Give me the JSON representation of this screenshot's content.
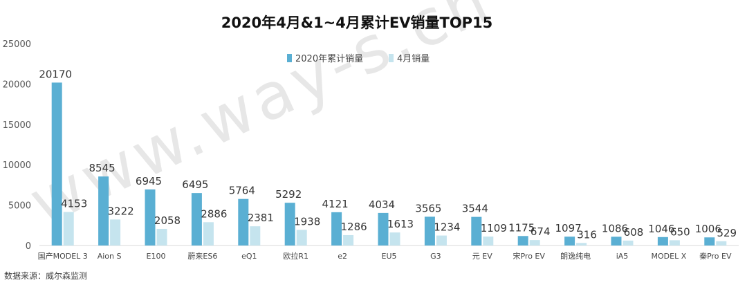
{
  "source_note": "数据来源：威尔森监测",
  "watermark": "www.way-s.cn",
  "chart_data": {
    "type": "bar",
    "title": "2020年4月&1~4月累计EV销量TOP15",
    "xlabel": "",
    "ylabel": "",
    "ylim": [
      0,
      25000
    ],
    "yticks": [
      0,
      5000,
      10000,
      15000,
      20000,
      25000
    ],
    "grid": false,
    "legend_position": "top-center",
    "categories": [
      "国产MODEL 3",
      "Aion S",
      "E100",
      "蔚来ES6",
      "eQ1",
      "欧拉R1",
      "e2",
      "EU5",
      "G3",
      "元 EV",
      "宋Pro EV",
      "朗逸纯电",
      "iA5",
      "MODEL X",
      "秦Pro EV"
    ],
    "series": [
      {
        "name": "2020年累计销量",
        "color": "#5aafd3",
        "values": [
          20170,
          8545,
          6945,
          6495,
          5764,
          5292,
          4121,
          4034,
          3565,
          3544,
          1175,
          1097,
          1086,
          1046,
          1006
        ]
      },
      {
        "name": "4月销量",
        "color": "#c5e4ee",
        "values": [
          4153,
          3222,
          2058,
          2886,
          2381,
          1938,
          1286,
          1613,
          1234,
          1109,
          674,
          316,
          608,
          650,
          529
        ]
      }
    ]
  }
}
